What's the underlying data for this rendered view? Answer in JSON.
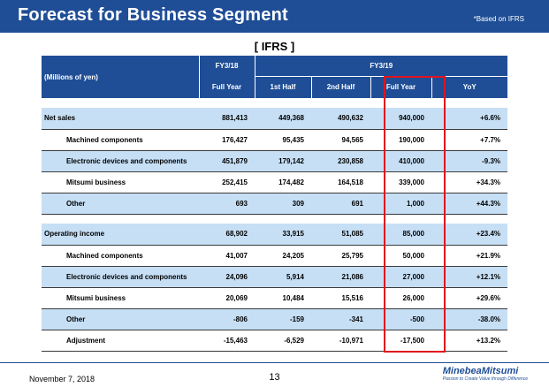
{
  "header": {
    "title": "Forecast for Business Segment",
    "note": "*Based on IFRS"
  },
  "section_label": "[ IFRS ]",
  "table": {
    "unit_label": "(Millions of yen)",
    "fy18": "FY3/18",
    "fy19": "FY3/19",
    "sub_headers": [
      "Full Year",
      "1st Half",
      "2nd Half",
      "Full Year",
      "YoY"
    ],
    "rows": [
      {
        "label": "Net sales",
        "values": [
          "881,413",
          "449,368",
          "490,632",
          "940,000",
          "+6.6%"
        ]
      },
      {
        "label": "Machined components",
        "values": [
          "176,427",
          "95,435",
          "94,565",
          "190,000",
          "+7.7%"
        ]
      },
      {
        "label": "Electronic devices and components",
        "values": [
          "451,879",
          "179,142",
          "230,858",
          "410,000",
          "-9.3%"
        ]
      },
      {
        "label": "Mitsumi business",
        "values": [
          "252,415",
          "174,482",
          "164,518",
          "339,000",
          "+34.3%"
        ]
      },
      {
        "label": "Other",
        "values": [
          "693",
          "309",
          "691",
          "1,000",
          "+44.3%"
        ]
      },
      {
        "label": "Operating income",
        "values": [
          "68,902",
          "33,915",
          "51,085",
          "85,000",
          "+23.4%"
        ]
      },
      {
        "label": "Machined components",
        "values": [
          "41,007",
          "24,205",
          "25,795",
          "50,000",
          "+21.9%"
        ]
      },
      {
        "label": "Electronic devices and components",
        "values": [
          "24,096",
          "5,914",
          "21,086",
          "27,000",
          "+12.1%"
        ]
      },
      {
        "label": "Mitsumi business",
        "values": [
          "20,069",
          "10,484",
          "15,516",
          "26,000",
          "+29.6%"
        ]
      },
      {
        "label": "Other",
        "values": [
          "-806",
          "-159",
          "-341",
          "-500",
          "-38.0%"
        ]
      },
      {
        "label": "Adjustment",
        "values": [
          "-15,463",
          "-6,529",
          "-10,971",
          "-17,500",
          "+13.2%"
        ]
      }
    ]
  },
  "footer": {
    "date": "November 7, 2018",
    "page": "13",
    "logo_name": "MinebeaMitsumi",
    "logo_tagline": "Passion to Create Value through Difference"
  }
}
